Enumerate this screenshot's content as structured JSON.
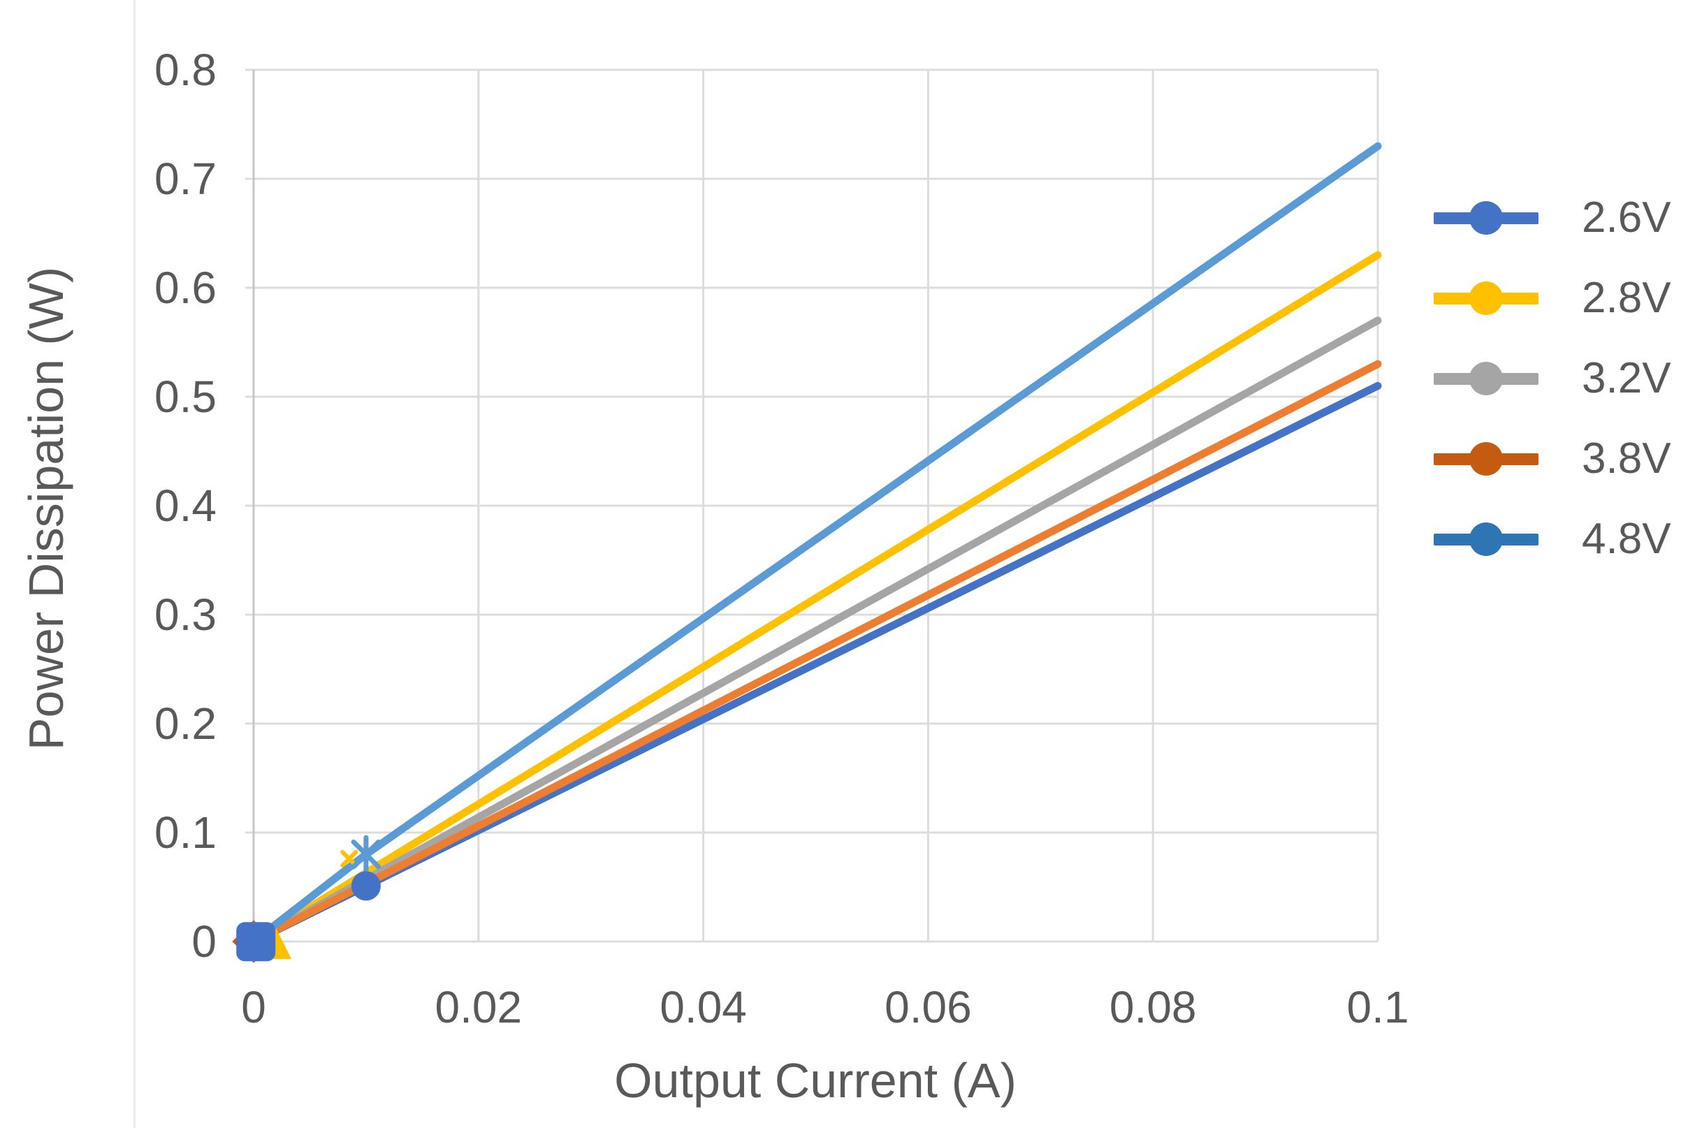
{
  "chart_data": {
    "type": "line",
    "title": "",
    "xlabel": "Output Current (A)",
    "ylabel": "Power Dissipation (W)",
    "xlim": [
      0,
      0.1
    ],
    "ylim": [
      0,
      0.8
    ],
    "grid": true,
    "legend_position": "right",
    "x_ticks": [
      {
        "label": "0",
        "value": 0
      },
      {
        "label": "0.02",
        "value": 0.02
      },
      {
        "label": "0.04",
        "value": 0.04
      },
      {
        "label": "0.06",
        "value": 0.06
      },
      {
        "label": "0.08",
        "value": 0.08
      },
      {
        "label": "0.1",
        "value": 0.1
      }
    ],
    "y_ticks": [
      {
        "label": "0.8",
        "value": 0.8
      },
      {
        "label": "0.7",
        "value": 0.7
      },
      {
        "label": "0.6",
        "value": 0.6
      },
      {
        "label": "0.5",
        "value": 0.5
      },
      {
        "label": "0.4",
        "value": 0.4
      },
      {
        "label": "0.3",
        "value": 0.3
      },
      {
        "label": "0.2",
        "value": 0.2
      },
      {
        "label": "0.1",
        "value": 0.1
      },
      {
        "label": "0",
        "value": 0
      }
    ],
    "series": [
      {
        "name": "2.6V",
        "color": "#4472C4",
        "legend_color": "#4472C4",
        "x": [
          0,
          0.01,
          0.1
        ],
        "y": [
          0,
          0.051,
          0.51
        ]
      },
      {
        "name": "2.8V",
        "color": "#FFC000",
        "legend_color": "#FFC000",
        "x": [
          0,
          0.01,
          0.1
        ],
        "y": [
          0,
          0.063,
          0.63
        ]
      },
      {
        "name": "3.2V",
        "color": "#A5A5A5",
        "legend_color": "#A5A5A5",
        "x": [
          0,
          0.01,
          0.1
        ],
        "y": [
          0,
          0.057,
          0.57
        ]
      },
      {
        "name": "3.8V",
        "color": "#ED7D31",
        "legend_color": "#C55A11",
        "x": [
          0,
          0.01,
          0.1
        ],
        "y": [
          0,
          0.053,
          0.53
        ]
      },
      {
        "name": "4.8V",
        "color": "#5B9BD5",
        "legend_color": "#2E75B6",
        "x": [
          0,
          0.01,
          0.1
        ],
        "y": [
          0,
          0.08,
          0.73
        ]
      }
    ],
    "markers": [
      {
        "shape": "diamond",
        "color": "#C55A11",
        "x": 0,
        "y": 0,
        "size": 60
      },
      {
        "shape": "triangle",
        "color": "#FFC000",
        "x": 0.002,
        "y": -0.002,
        "size": 44
      },
      {
        "shape": "square",
        "color": "#4472C4",
        "x": 0.0002,
        "y": -0.0002,
        "size": 56
      },
      {
        "shape": "x",
        "color": "#FFC000",
        "x": 0.0085,
        "y": 0.076,
        "size": 26
      },
      {
        "shape": "star",
        "color": "#5B9BD5",
        "x": 0.01,
        "y": 0.08,
        "size": 48
      },
      {
        "shape": "circle",
        "color": "#4472C4",
        "x": 0.01,
        "y": 0.051,
        "size": 42
      }
    ],
    "style": {
      "text_color": "#595959",
      "grid_color": "#DCDCDC",
      "axis_color": "#C6C6C6",
      "background": "#FFFFFF",
      "frame_line_color": "#ECECEC"
    }
  }
}
